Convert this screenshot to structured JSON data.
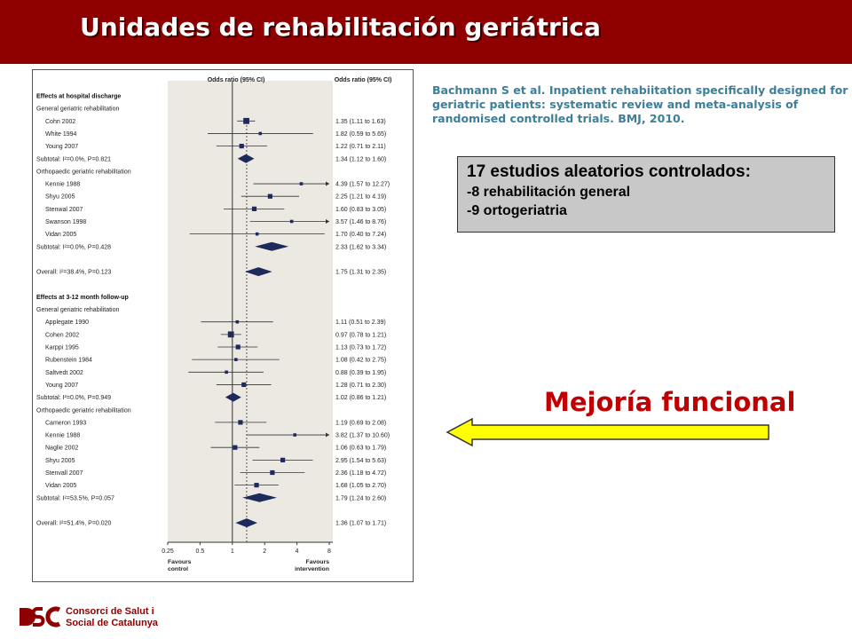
{
  "slide": {
    "title": "Unidades de rehabilitación geriátrica"
  },
  "citation": {
    "text": "Bachmann S et al. Inpatient rehabiitation specifically designed for geriatric patients: systematic review and meta-analysis of randomised controlled trials. BMJ, 2010."
  },
  "studies_box": {
    "heading": "17 estudios aleatorios controlados:",
    "lines": [
      "-8 rehabilitación general",
      "-9 ortogeriatria"
    ]
  },
  "arrow_label": "Mejoría funcional",
  "logo": {
    "line1": "Consorci de Salut i",
    "line2": "Social de Catalunya"
  },
  "colors": {
    "header": "#8f0000",
    "citation": "#3d7e98",
    "arrow_fill": "#ffff00",
    "mejoria": "#c00000",
    "forest_marker": "#1f2a5c",
    "plot_bg": "#ece9e3"
  },
  "forest_plot": {
    "col_header_left": "Odds ratio (95% CI)",
    "col_header_right": "Odds ratio (95% CI)",
    "rows": [
      {
        "kind": "section",
        "label": "Effects at hospital discharge"
      },
      {
        "kind": "group",
        "label": "General geriatric rehabilitation"
      },
      {
        "kind": "study",
        "label": "Cohn 2002",
        "or": 1.35,
        "lo": 1.11,
        "hi": 1.63,
        "ci": "1.35 (1.11 to 1.63)",
        "w": 3
      },
      {
        "kind": "study",
        "label": "White 1994",
        "or": 1.82,
        "lo": 0.59,
        "hi": 5.65,
        "ci": "1.82 (0.59 to 5.65)",
        "w": 1
      },
      {
        "kind": "study",
        "label": "Young 2007",
        "or": 1.22,
        "lo": 0.71,
        "hi": 2.11,
        "ci": "1.22 (0.71 to 2.11)",
        "w": 2
      },
      {
        "kind": "subtotal",
        "label": "Subtotal: I²=0.0%, P=0.821",
        "or": 1.34,
        "lo": 1.12,
        "hi": 1.6,
        "ci": "1.34 (1.12 to 1.60)"
      },
      {
        "kind": "group",
        "label": "Orthopaedic geriatric rehabilitation"
      },
      {
        "kind": "study",
        "label": "Kennie 1988",
        "or": 4.39,
        "lo": 1.57,
        "hi": 12.27,
        "ci": "4.39 (1.57 to 12.27)",
        "w": 1
      },
      {
        "kind": "study",
        "label": "Shyu 2005",
        "or": 2.25,
        "lo": 1.21,
        "hi": 4.19,
        "ci": "2.25 (1.21 to 4.19)",
        "w": 2
      },
      {
        "kind": "study",
        "label": "Stenwal 2007",
        "or": 1.6,
        "lo": 0.83,
        "hi": 3.05,
        "ci": "1.60 (0.83 to 3.05)",
        "w": 2
      },
      {
        "kind": "study",
        "label": "Swanson 1998",
        "or": 3.57,
        "lo": 1.46,
        "hi": 8.76,
        "ci": "3.57 (1.46 to 8.76)",
        "w": 1
      },
      {
        "kind": "study",
        "label": "Vidan 2005",
        "or": 1.7,
        "lo": 0.4,
        "hi": 7.24,
        "ci": "1.70 (0.40 to 7.24)",
        "w": 1
      },
      {
        "kind": "subtotal",
        "label": "Subtotal: I²=0.0%, P=0.428",
        "or": 2.33,
        "lo": 1.62,
        "hi": 3.34,
        "ci": "2.33 (1.62 to 3.34)"
      },
      {
        "kind": "blank"
      },
      {
        "kind": "subtotal",
        "label": "Overall: I²=38.4%, P=0.123",
        "or": 1.75,
        "lo": 1.31,
        "hi": 2.35,
        "ci": "1.75 (1.31 to 2.35)"
      },
      {
        "kind": "blank"
      },
      {
        "kind": "section",
        "label": "Effects at 3-12 month follow-up"
      },
      {
        "kind": "group",
        "label": "General geriatric rehabilitation"
      },
      {
        "kind": "study",
        "label": "Applegate 1990",
        "or": 1.11,
        "lo": 0.51,
        "hi": 2.39,
        "ci": "1.11 (0.51 to 2.39)",
        "w": 1
      },
      {
        "kind": "study",
        "label": "Cohen 2002",
        "or": 0.97,
        "lo": 0.78,
        "hi": 1.21,
        "ci": "0.97 (0.78 to 1.21)",
        "w": 3
      },
      {
        "kind": "study",
        "label": "Karppi 1995",
        "or": 1.13,
        "lo": 0.73,
        "hi": 1.72,
        "ci": "1.13 (0.73 to 1.72)",
        "w": 2
      },
      {
        "kind": "study",
        "label": "Rubenstein 1984",
        "or": 1.08,
        "lo": 0.42,
        "hi": 2.75,
        "ci": "1.08 (0.42 to 2.75)",
        "w": 1
      },
      {
        "kind": "study",
        "label": "Saltvedt 2002",
        "or": 0.88,
        "lo": 0.39,
        "hi": 1.95,
        "ci": "0.88 (0.39 to 1.95)",
        "w": 1
      },
      {
        "kind": "study",
        "label": "Young 2007",
        "or": 1.28,
        "lo": 0.71,
        "hi": 2.3,
        "ci": "1.28 (0.71 to 2.30)",
        "w": 2
      },
      {
        "kind": "subtotal",
        "label": "Subtotal: I²=0.0%, P=0.949",
        "or": 1.02,
        "lo": 0.86,
        "hi": 1.21,
        "ci": "1.02 (0.86 to 1.21)"
      },
      {
        "kind": "group",
        "label": "Orthopaedic geriatric rehabilitation"
      },
      {
        "kind": "study",
        "label": "Cameron 1993",
        "or": 1.19,
        "lo": 0.69,
        "hi": 2.08,
        "ci": "1.19 (0.69 to 2.08)",
        "w": 2
      },
      {
        "kind": "study",
        "label": "Kennie 1988",
        "or": 3.82,
        "lo": 1.37,
        "hi": 10.6,
        "ci": "3.82 (1.37 to 10.60)",
        "w": 1
      },
      {
        "kind": "study",
        "label": "Naglie 2002",
        "or": 1.06,
        "lo": 0.63,
        "hi": 1.79,
        "ci": "1.06 (0.63 to 1.79)",
        "w": 2
      },
      {
        "kind": "study",
        "label": "Shyu 2005",
        "or": 2.95,
        "lo": 1.54,
        "hi": 5.63,
        "ci": "2.95 (1.54 to 5.63)",
        "w": 2
      },
      {
        "kind": "study",
        "label": "Stenvall 2007",
        "or": 2.36,
        "lo": 1.18,
        "hi": 4.72,
        "ci": "2.36 (1.18 to 4.72)",
        "w": 2
      },
      {
        "kind": "study",
        "label": "Vidan 2005",
        "or": 1.68,
        "lo": 1.05,
        "hi": 2.7,
        "ci": "1.68 (1.05 to 2.70)",
        "w": 2
      },
      {
        "kind": "subtotal",
        "label": "Subtotal: I²=53.5%, P=0.057",
        "or": 1.79,
        "lo": 1.24,
        "hi": 2.6,
        "ci": "1.79 (1.24 to 2.60)"
      },
      {
        "kind": "blank"
      },
      {
        "kind": "subtotal",
        "label": "Overall: I²=51.4%, P=0.020",
        "or": 1.36,
        "lo": 1.07,
        "hi": 1.71,
        "ci": "1.36 (1.07 to 1.71)"
      }
    ],
    "axis": {
      "scale": "log",
      "min": 0.25,
      "max": 8,
      "ticks": [
        0.25,
        0.5,
        1,
        2,
        4,
        8
      ],
      "tick_labels": [
        "0.25",
        "0.5",
        "1",
        "2",
        "4",
        "8"
      ],
      "label_left": [
        "Favours",
        "control"
      ],
      "label_right": [
        "Favours",
        "intervention"
      ],
      "reference_value": 1,
      "overall_reference": 1.36
    }
  }
}
